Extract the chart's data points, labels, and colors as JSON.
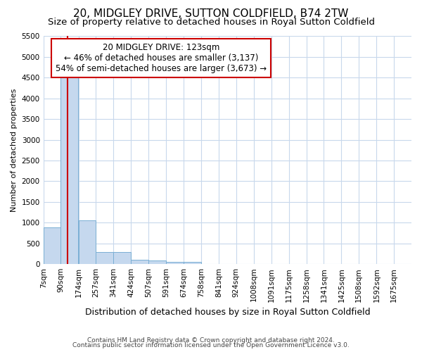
{
  "title1": "20, MIDGLEY DRIVE, SUTTON COLDFIELD, B74 2TW",
  "title2": "Size of property relative to detached houses in Royal Sutton Coldfield",
  "xlabel": "Distribution of detached houses by size in Royal Sutton Coldfield",
  "ylabel": "Number of detached properties",
  "footer1": "Contains HM Land Registry data © Crown copyright and database right 2024.",
  "footer2": "Contains public sector information licensed under the Open Government Licence v3.0.",
  "annotation_title": "20 MIDGLEY DRIVE: 123sqm",
  "annotation_line1": "← 46% of detached houses are smaller (3,137)",
  "annotation_line2": "54% of semi-detached houses are larger (3,673) →",
  "property_size": 123,
  "bar_categories": [
    "7sqm",
    "90sqm",
    "174sqm",
    "257sqm",
    "341sqm",
    "424sqm",
    "507sqm",
    "591sqm",
    "674sqm",
    "758sqm",
    "841sqm",
    "924sqm",
    "1008sqm",
    "1091sqm",
    "1175sqm",
    "1258sqm",
    "1341sqm",
    "1425sqm",
    "1508sqm",
    "1592sqm",
    "1675sqm"
  ],
  "bar_left_edges": [
    7,
    90,
    174,
    257,
    341,
    424,
    507,
    591,
    674,
    758,
    841,
    924,
    1008,
    1091,
    1175,
    1258,
    1341,
    1425,
    1508,
    1592,
    1675
  ],
  "bin_width": 83,
  "bar_heights": [
    880,
    4570,
    1060,
    290,
    290,
    95,
    80,
    50,
    50,
    0,
    0,
    0,
    0,
    0,
    0,
    0,
    0,
    0,
    0,
    0,
    0
  ],
  "bar_color": "#c5d8ee",
  "bar_edge_color": "#7aafd4",
  "vline_x": 123,
  "vline_color": "#cc0000",
  "ylim": [
    0,
    5500
  ],
  "yticks": [
    0,
    500,
    1000,
    1500,
    2000,
    2500,
    3000,
    3500,
    4000,
    4500,
    5000,
    5500
  ],
  "fig_bg_color": "#ffffff",
  "plot_bg_color": "#ffffff",
  "grid_color": "#c8d8ec",
  "annotation_box_color": "#ffffff",
  "annotation_box_edge": "#cc0000",
  "title1_fontsize": 11,
  "title2_fontsize": 9.5,
  "xlabel_fontsize": 9,
  "ylabel_fontsize": 8,
  "annotation_fontsize": 8.5,
  "tick_fontsize": 7.5,
  "footer_fontsize": 6.5
}
